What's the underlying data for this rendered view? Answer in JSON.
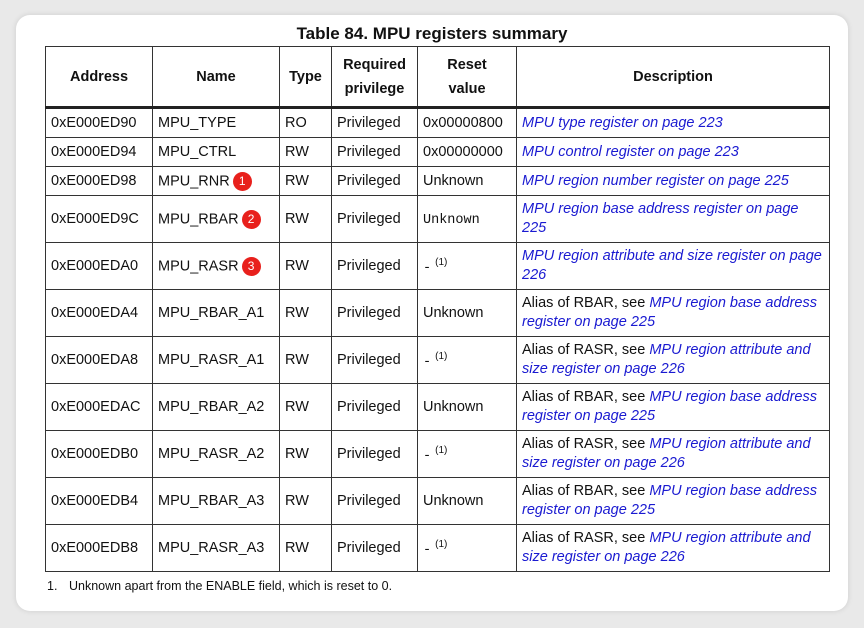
{
  "title": "Table 84. MPU registers summary",
  "headers": {
    "address": "Address",
    "name": "Name",
    "type": "Type",
    "priv_line1": "Required",
    "priv_line2": "privilege",
    "reset_line1": "Reset",
    "reset_line2": "value",
    "description": "Description"
  },
  "rows": [
    {
      "address": "0xE000ED90",
      "name": "MPU_TYPE",
      "type": "RO",
      "privilege": "Privileged",
      "reset": "0x00000800",
      "desc_prefix": "",
      "desc_link": "MPU type register on page 223"
    },
    {
      "address": "0xE000ED94",
      "name": "MPU_CTRL",
      "type": "RW",
      "privilege": "Privileged",
      "reset": "0x00000000",
      "desc_prefix": "",
      "desc_link": "MPU control register on page 223"
    },
    {
      "address": "0xE000ED98",
      "name": "MPU_RNR",
      "badge": "1",
      "type": "RW",
      "privilege": "Privileged",
      "reset": "Unknown",
      "desc_prefix": "",
      "desc_link": "MPU region number register on page 225"
    },
    {
      "address": "0xE000ED9C",
      "name": "MPU_RBAR",
      "badge": "2",
      "type": "RW",
      "privilege": "Privileged",
      "reset": "Unknown",
      "desc_prefix": "",
      "desc_link": "MPU region base address register on page 225"
    },
    {
      "address": "0xE000EDA0",
      "name": "MPU_RASR",
      "badge": "3",
      "type": "RW",
      "privilege": "Privileged",
      "reset": "-",
      "reset_note": "(1)",
      "desc_prefix": "",
      "desc_link": "MPU region attribute and size register on page 226"
    },
    {
      "address": "0xE000EDA4",
      "name": "MPU_RBAR_A1",
      "type": "RW",
      "privilege": "Privileged",
      "reset": "Unknown",
      "desc_prefix": "Alias of RBAR, see ",
      "desc_link": "MPU region base address register on page 225"
    },
    {
      "address": "0xE000EDA8",
      "name": "MPU_RASR_A1",
      "type": "RW",
      "privilege": "Privileged",
      "reset": "-",
      "reset_note": "(1)",
      "desc_prefix": "Alias of RASR, see ",
      "desc_link": "MPU region attribute and size register on page 226"
    },
    {
      "address": "0xE000EDAC",
      "name": "MPU_RBAR_A2",
      "type": "RW",
      "privilege": "Privileged",
      "reset": "Unknown",
      "desc_prefix": "Alias of RBAR, see ",
      "desc_link": "MPU region base address register on page 225"
    },
    {
      "address": "0xE000EDB0",
      "name": "MPU_RASR_A2",
      "type": "RW",
      "privilege": "Privileged",
      "reset": "-",
      "reset_note": "(1)",
      "desc_prefix": "Alias of RASR, see ",
      "desc_link": "MPU region attribute and size register on page 226"
    },
    {
      "address": "0xE000EDB4",
      "name": "MPU_RBAR_A3",
      "type": "RW",
      "privilege": "Privileged",
      "reset": "Unknown",
      "desc_prefix": "Alias of RBAR, see ",
      "desc_link": "MPU region base address register on page 225"
    },
    {
      "address": "0xE000EDB8",
      "name": "MPU_RASR_A3",
      "type": "RW",
      "privilege": "Privileged",
      "reset": "-",
      "reset_note": "(1)",
      "desc_prefix": "Alias of RASR, see ",
      "desc_link": "MPU region attribute and size register on page 226"
    }
  ],
  "footnote": {
    "number": "1.",
    "text": "Unknown apart from the ENABLE field, which is reset to 0."
  },
  "colors": {
    "link": "#1a1ad1",
    "badge": "#e8201c"
  }
}
